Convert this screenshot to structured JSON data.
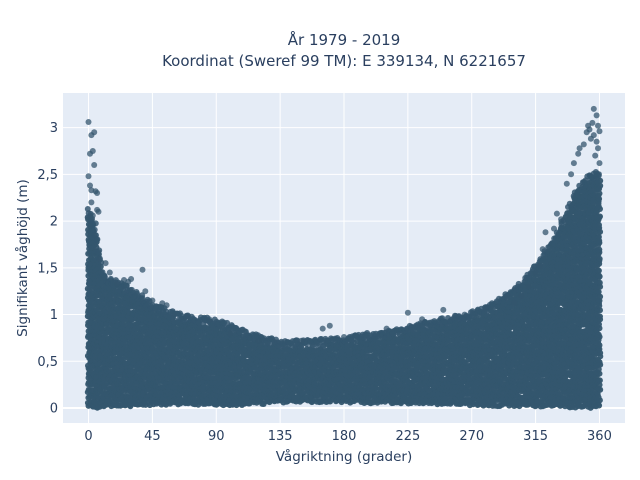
{
  "chart_data": {
    "type": "scatter",
    "title_line1": "År 1979 - 2019",
    "title_line2": "Koordinat (Sweref 99 TM): E 339134, N 6221657",
    "xlabel": "Vågriktning (grader)",
    "ylabel": "Signifikant våghöjd (m)",
    "xlim": [
      -18,
      378
    ],
    "ylim": [
      -0.16,
      3.37
    ],
    "x_ticks": [
      0,
      45,
      90,
      135,
      180,
      225,
      270,
      315,
      360
    ],
    "x_tick_labels": [
      "0",
      "45",
      "90",
      "135",
      "180",
      "225",
      "270",
      "315",
      "360"
    ],
    "y_ticks": [
      0,
      0.5,
      1,
      1.5,
      2,
      2.5,
      3
    ],
    "y_tick_labels": [
      "0",
      "0,5",
      "1",
      "1,5",
      "2",
      "2,5",
      "3"
    ],
    "grid": true,
    "marker_color": "#34566e",
    "plot_bgcolor": "#e5ecf6",
    "envelope": {
      "x": [
        0,
        5,
        10,
        20,
        30,
        45,
        60,
        75,
        90,
        105,
        120,
        135,
        150,
        165,
        180,
        195,
        210,
        225,
        240,
        255,
        270,
        285,
        300,
        315,
        330,
        345,
        355,
        360
      ],
      "y_min": [
        0.02,
        0.02,
        0.03,
        0.04,
        0.04,
        0.05,
        0.05,
        0.05,
        0.05,
        0.05,
        0.06,
        0.07,
        0.08,
        0.08,
        0.08,
        0.07,
        0.07,
        0.06,
        0.06,
        0.05,
        0.05,
        0.04,
        0.04,
        0.03,
        0.03,
        0.02,
        0.02,
        0.04
      ],
      "y_max": [
        2.05,
        1.9,
        1.35,
        1.3,
        1.2,
        1.05,
        0.95,
        0.9,
        0.88,
        0.78,
        0.7,
        0.65,
        0.65,
        0.66,
        0.68,
        0.72,
        0.75,
        0.8,
        0.85,
        0.9,
        0.95,
        1.05,
        1.2,
        1.45,
        1.8,
        2.3,
        2.45,
        2.45
      ]
    },
    "outliers": [
      {
        "x": 0,
        "y": 3.06
      },
      {
        "x": 2,
        "y": 2.92
      },
      {
        "x": 4,
        "y": 2.95
      },
      {
        "x": 1,
        "y": 2.72
      },
      {
        "x": 3,
        "y": 2.75
      },
      {
        "x": 4,
        "y": 2.6
      },
      {
        "x": 0,
        "y": 2.48
      },
      {
        "x": 1,
        "y": 2.38
      },
      {
        "x": 2,
        "y": 2.33
      },
      {
        "x": 5,
        "y": 2.32
      },
      {
        "x": 6,
        "y": 2.3
      },
      {
        "x": 2,
        "y": 2.2
      },
      {
        "x": 6,
        "y": 2.12
      },
      {
        "x": 3,
        "y": 2.06
      },
      {
        "x": 7,
        "y": 2.1
      },
      {
        "x": 1,
        "y": 1.95
      },
      {
        "x": 4,
        "y": 1.85
      },
      {
        "x": 8,
        "y": 1.6
      },
      {
        "x": 12,
        "y": 1.55
      },
      {
        "x": 15,
        "y": 1.45
      },
      {
        "x": 20,
        "y": 1.33
      },
      {
        "x": 25,
        "y": 1.37
      },
      {
        "x": 28,
        "y": 1.35
      },
      {
        "x": 30,
        "y": 1.38
      },
      {
        "x": 38,
        "y": 1.48
      },
      {
        "x": 40,
        "y": 1.25
      },
      {
        "x": 45,
        "y": 1.15
      },
      {
        "x": 52,
        "y": 1.12
      },
      {
        "x": 55,
        "y": 1.1
      },
      {
        "x": 60,
        "y": 1.0
      },
      {
        "x": 70,
        "y": 0.98
      },
      {
        "x": 85,
        "y": 0.95
      },
      {
        "x": 100,
        "y": 0.8
      },
      {
        "x": 120,
        "y": 0.72
      },
      {
        "x": 150,
        "y": 0.72
      },
      {
        "x": 165,
        "y": 0.85
      },
      {
        "x": 170,
        "y": 0.88
      },
      {
        "x": 180,
        "y": 0.76
      },
      {
        "x": 210,
        "y": 0.85
      },
      {
        "x": 225,
        "y": 1.02
      },
      {
        "x": 235,
        "y": 0.95
      },
      {
        "x": 250,
        "y": 1.05
      },
      {
        "x": 265,
        "y": 1.0
      },
      {
        "x": 280,
        "y": 1.08
      },
      {
        "x": 295,
        "y": 1.18
      },
      {
        "x": 300,
        "y": 1.12
      },
      {
        "x": 305,
        "y": 1.2
      },
      {
        "x": 310,
        "y": 1.3
      },
      {
        "x": 315,
        "y": 1.45
      },
      {
        "x": 318,
        "y": 1.52
      },
      {
        "x": 320,
        "y": 1.7
      },
      {
        "x": 322,
        "y": 1.88
      },
      {
        "x": 328,
        "y": 1.92
      },
      {
        "x": 330,
        "y": 2.08
      },
      {
        "x": 333,
        "y": 2.02
      },
      {
        "x": 337,
        "y": 2.4
      },
      {
        "x": 340,
        "y": 2.5
      },
      {
        "x": 342,
        "y": 2.62
      },
      {
        "x": 345,
        "y": 2.72
      },
      {
        "x": 346,
        "y": 2.78
      },
      {
        "x": 349,
        "y": 2.82
      },
      {
        "x": 351,
        "y": 2.95
      },
      {
        "x": 352,
        "y": 3.02
      },
      {
        "x": 353,
        "y": 2.98
      },
      {
        "x": 354,
        "y": 2.88
      },
      {
        "x": 355,
        "y": 3.05
      },
      {
        "x": 356,
        "y": 2.92
      },
      {
        "x": 356,
        "y": 3.2
      },
      {
        "x": 357,
        "y": 2.7
      },
      {
        "x": 358,
        "y": 3.13
      },
      {
        "x": 358,
        "y": 2.85
      },
      {
        "x": 359,
        "y": 3.02
      },
      {
        "x": 359,
        "y": 2.78
      },
      {
        "x": 360,
        "y": 2.96
      },
      {
        "x": 360,
        "y": 2.62
      }
    ]
  }
}
